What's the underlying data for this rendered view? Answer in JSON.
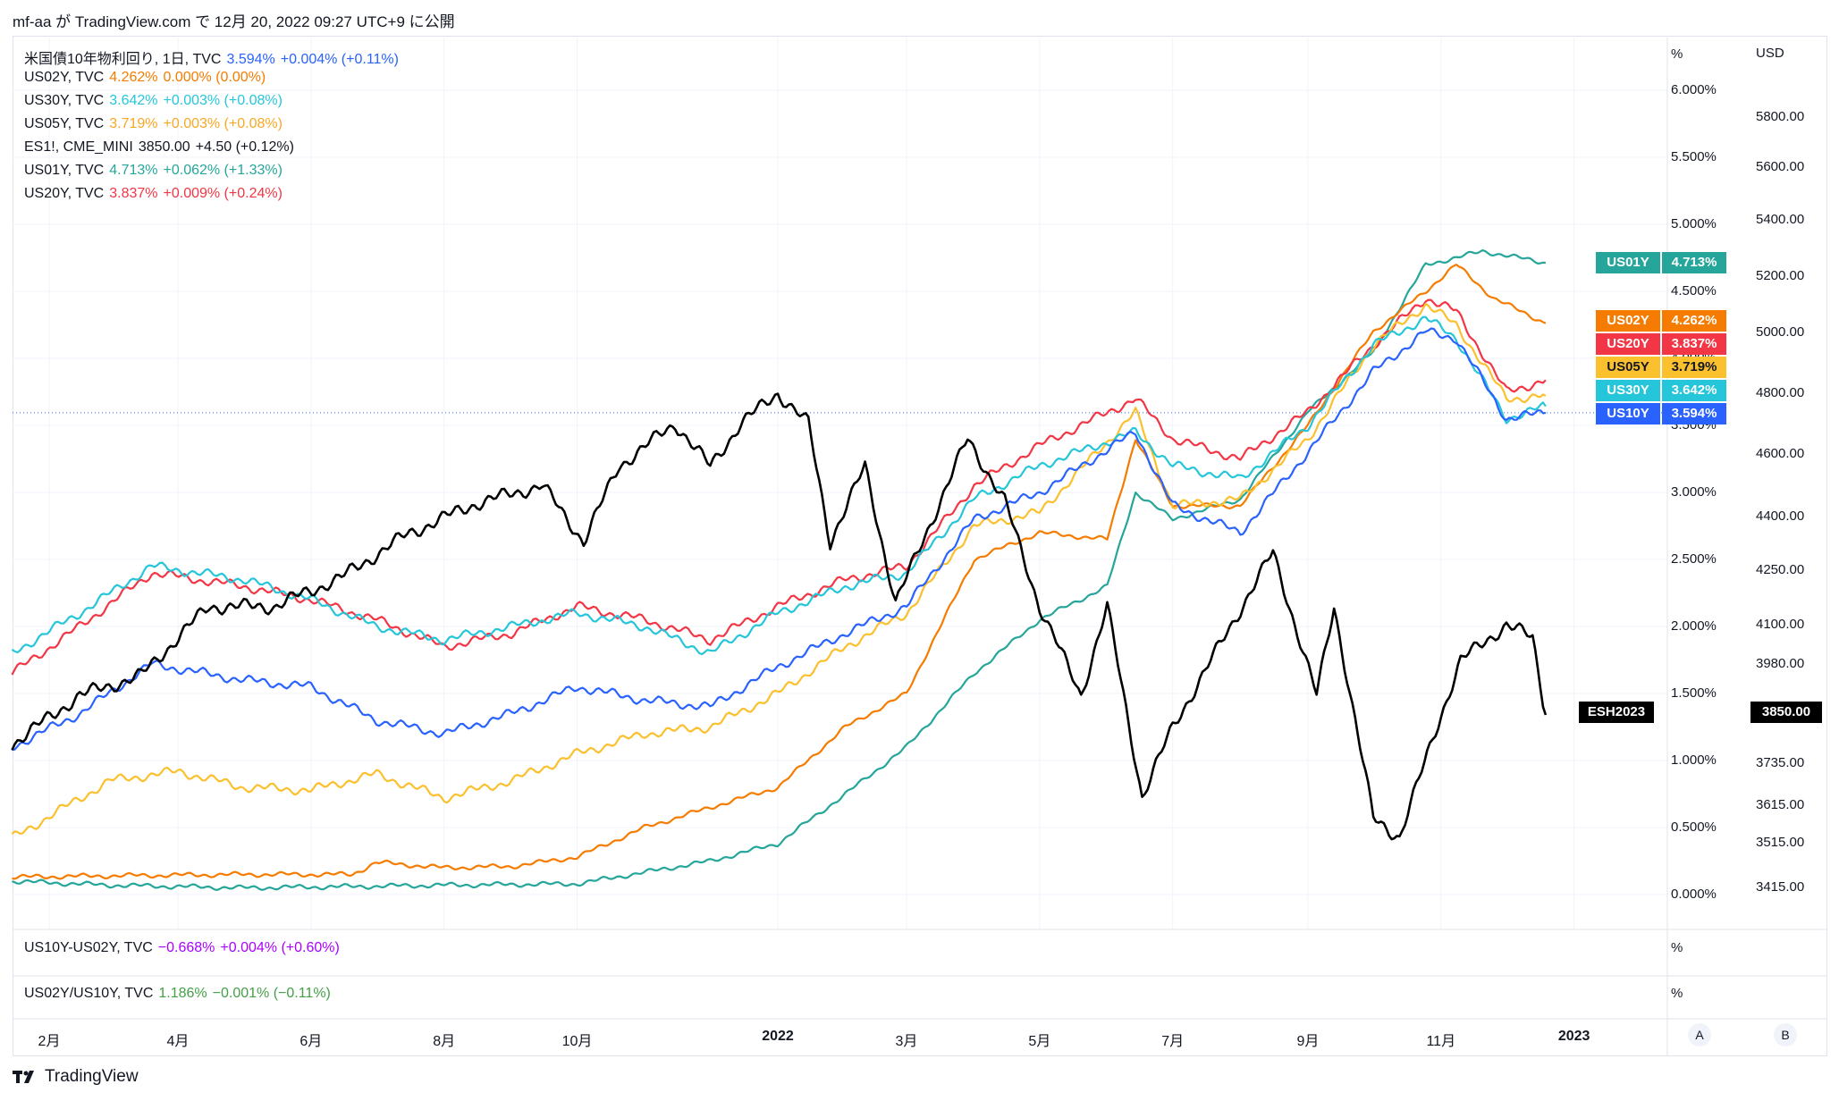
{
  "header": {
    "text": "mf-aa が TradingView.com で 12月 20, 2022 09:27 UTC+9 に公開"
  },
  "legend": [
    {
      "name": "米国債10年物利回り, 1日, TVC",
      "value": "3.594%",
      "change": "+0.004% (+0.11%)",
      "color": "#2962ff"
    },
    {
      "name": "US02Y, TVC",
      "value": "4.262%",
      "change": "0.000% (0.00%)",
      "color": "#f57c00"
    },
    {
      "name": "US30Y, TVC",
      "value": "3.642%",
      "change": "+0.003% (+0.08%)",
      "color": "#26c6da"
    },
    {
      "name": "US05Y, TVC",
      "value": "3.719%",
      "change": "+0.003% (+0.08%)",
      "color": "#fbc02d"
    },
    {
      "name": "ES1!, CME_MINI",
      "value": "3850.00",
      "change": "+4.50 (+0.12%)",
      "color": "#131722"
    },
    {
      "name": "US01Y, TVC",
      "value": "4.713%",
      "change": "+0.062% (+1.33%)",
      "color": "#26a69a"
    },
    {
      "name": "US20Y, TVC",
      "value": "3.837%",
      "change": "+0.009% (+0.24%)",
      "color": "#f23645"
    }
  ],
  "pane2": {
    "name": "US10Y-US02Y, TVC",
    "value": "−0.668%",
    "change": "+0.004% (+0.60%)",
    "color": "#aa00ff",
    "unit": "%"
  },
  "pane3": {
    "name": "US02Y/US10Y, TVC",
    "value": "1.186%",
    "change": "−0.001% (−0.11%)",
    "color": "#43a047",
    "unit": "%"
  },
  "axis_units": {
    "left": "%",
    "right": "USD"
  },
  "badges": {
    "US01Y": {
      "label": "US01Y",
      "value": "4.713%",
      "color": "#26a69a"
    },
    "US02Y": {
      "label": "US02Y",
      "value": "4.262%",
      "color": "#f57c00"
    },
    "US20Y": {
      "label": "US20Y",
      "value": "3.837%",
      "color": "#f23645"
    },
    "US05Y": {
      "label": "US05Y",
      "value": "3.719%",
      "color": "#fbc02d"
    },
    "US30Y": {
      "label": "US30Y",
      "value": "3.642%",
      "color": "#26c6da"
    },
    "US10Y": {
      "label": "US10Y",
      "value": "3.594%",
      "color": "#2962ff"
    },
    "ESH2023": {
      "label": "ESH2023",
      "value": "3850.00",
      "color": "#000000"
    }
  },
  "buttons": {
    "a": "A",
    "b": "B"
  },
  "footer": {
    "brand": "TradingView"
  },
  "chart_data": {
    "type": "line",
    "x_labels": [
      "2月",
      "4月",
      "6月",
      "8月",
      "10月",
      "2022",
      "3月",
      "5月",
      "7月",
      "9月",
      "11月",
      "2023"
    ],
    "y_left": {
      "unit": "%",
      "ticks": [
        "0.000%",
        "0.500%",
        "1.000%",
        "1.500%",
        "2.000%",
        "2.500%",
        "3.000%",
        "3.500%",
        "4.000%",
        "4.500%",
        "5.000%",
        "5.500%",
        "6.000%"
      ],
      "range": [
        0,
        6
      ]
    },
    "y_right": {
      "unit": "USD",
      "ticks": [
        "3415.00",
        "3515.00",
        "3615.00",
        "3735.00",
        "3850.00",
        "3980.00",
        "4100.00",
        "4250.00",
        "4400.00",
        "4600.00",
        "4800.00",
        "5000.00",
        "5200.00",
        "5400.00",
        "5600.00",
        "5800.00"
      ],
      "scale": "log"
    },
    "series": [
      {
        "name": "US01Y",
        "color": "#26a69a",
        "axis": "left",
        "points": [
          [
            "2021-01-15",
            0.1
          ],
          [
            "2021-03-01",
            0.07
          ],
          [
            "2021-05-01",
            0.05
          ],
          [
            "2021-06-20",
            0.06
          ],
          [
            "2021-08-01",
            0.07
          ],
          [
            "2021-10-01",
            0.08
          ],
          [
            "2021-12-01",
            0.25
          ],
          [
            "2022-01-01",
            0.38
          ],
          [
            "2022-02-01",
            0.75
          ],
          [
            "2022-03-01",
            1.1
          ],
          [
            "2022-04-01",
            1.65
          ],
          [
            "2022-05-01",
            2.05
          ],
          [
            "2022-06-01",
            2.3
          ],
          [
            "2022-06-14",
            3.0
          ],
          [
            "2022-07-01",
            2.8
          ],
          [
            "2022-08-01",
            2.95
          ],
          [
            "2022-09-01",
            3.6
          ],
          [
            "2022-10-01",
            4.05
          ],
          [
            "2022-10-25",
            4.7
          ],
          [
            "2022-11-08",
            4.75
          ],
          [
            "2022-11-20",
            4.8
          ],
          [
            "2022-12-19",
            4.713
          ]
        ]
      },
      {
        "name": "US02Y",
        "color": "#f57c00",
        "axis": "left",
        "points": [
          [
            "2021-01-15",
            0.13
          ],
          [
            "2021-03-01",
            0.14
          ],
          [
            "2021-05-01",
            0.15
          ],
          [
            "2021-06-20",
            0.15
          ],
          [
            "2021-07-01",
            0.24
          ],
          [
            "2021-08-01",
            0.2
          ],
          [
            "2021-09-01",
            0.21
          ],
          [
            "2021-10-01",
            0.28
          ],
          [
            "2021-11-01",
            0.5
          ],
          [
            "2021-12-01",
            0.65
          ],
          [
            "2022-01-01",
            0.8
          ],
          [
            "2022-02-01",
            1.25
          ],
          [
            "2022-03-01",
            1.5
          ],
          [
            "2022-04-01",
            2.5
          ],
          [
            "2022-05-01",
            2.7
          ],
          [
            "2022-06-01",
            2.65
          ],
          [
            "2022-06-14",
            3.4
          ],
          [
            "2022-07-01",
            2.9
          ],
          [
            "2022-08-01",
            2.9
          ],
          [
            "2022-09-01",
            3.5
          ],
          [
            "2022-10-01",
            4.2
          ],
          [
            "2022-10-25",
            4.5
          ],
          [
            "2022-11-08",
            4.7
          ],
          [
            "2022-11-25",
            4.45
          ],
          [
            "2022-12-19",
            4.262
          ]
        ]
      },
      {
        "name": "US20Y",
        "color": "#f23645",
        "axis": "left",
        "points": [
          [
            "2021-01-15",
            1.65
          ],
          [
            "2021-02-15",
            2.0
          ],
          [
            "2021-03-20",
            2.4
          ],
          [
            "2021-05-01",
            2.3
          ],
          [
            "2021-06-01",
            2.2
          ],
          [
            "2021-07-01",
            2.05
          ],
          [
            "2021-08-01",
            1.85
          ],
          [
            "2021-09-01",
            1.95
          ],
          [
            "2021-10-01",
            2.15
          ],
          [
            "2021-11-01",
            2.05
          ],
          [
            "2021-12-01",
            1.9
          ],
          [
            "2022-01-01",
            2.15
          ],
          [
            "2022-02-01",
            2.35
          ],
          [
            "2022-03-01",
            2.45
          ],
          [
            "2022-04-01",
            3.05
          ],
          [
            "2022-05-01",
            3.35
          ],
          [
            "2022-06-14",
            3.7
          ],
          [
            "2022-07-01",
            3.4
          ],
          [
            "2022-08-01",
            3.25
          ],
          [
            "2022-09-01",
            3.6
          ],
          [
            "2022-10-01",
            4.1
          ],
          [
            "2022-10-25",
            4.45
          ],
          [
            "2022-11-08",
            4.35
          ],
          [
            "2022-12-01",
            3.75
          ],
          [
            "2022-12-19",
            3.837
          ]
        ]
      },
      {
        "name": "US05Y",
        "color": "#fbc02d",
        "axis": "left",
        "points": [
          [
            "2021-01-15",
            0.42
          ],
          [
            "2021-03-01",
            0.85
          ],
          [
            "2021-04-01",
            0.92
          ],
          [
            "2021-05-01",
            0.8
          ],
          [
            "2021-06-01",
            0.78
          ],
          [
            "2021-07-01",
            0.9
          ],
          [
            "2021-08-01",
            0.72
          ],
          [
            "2021-09-01",
            0.85
          ],
          [
            "2021-10-01",
            1.05
          ],
          [
            "2021-11-01",
            1.2
          ],
          [
            "2021-12-01",
            1.25
          ],
          [
            "2022-01-01",
            1.5
          ],
          [
            "2022-02-01",
            1.85
          ],
          [
            "2022-03-01",
            2.1
          ],
          [
            "2022-04-01",
            2.75
          ],
          [
            "2022-05-01",
            2.85
          ],
          [
            "2022-06-14",
            3.6
          ],
          [
            "2022-07-01",
            2.9
          ],
          [
            "2022-08-01",
            2.95
          ],
          [
            "2022-09-01",
            3.4
          ],
          [
            "2022-10-01",
            4.1
          ],
          [
            "2022-10-25",
            4.4
          ],
          [
            "2022-11-08",
            4.25
          ],
          [
            "2022-12-01",
            3.7
          ],
          [
            "2022-12-19",
            3.719
          ]
        ]
      },
      {
        "name": "US30Y",
        "color": "#26c6da",
        "axis": "left",
        "points": [
          [
            "2021-01-15",
            1.8
          ],
          [
            "2021-02-15",
            2.1
          ],
          [
            "2021-03-20",
            2.45
          ],
          [
            "2021-05-01",
            2.35
          ],
          [
            "2021-06-01",
            2.2
          ],
          [
            "2021-07-01",
            2.0
          ],
          [
            "2021-08-01",
            1.9
          ],
          [
            "2021-09-01",
            2.0
          ],
          [
            "2021-10-01",
            2.1
          ],
          [
            "2021-11-01",
            2.0
          ],
          [
            "2021-12-01",
            1.8
          ],
          [
            "2022-01-01",
            2.1
          ],
          [
            "2022-02-01",
            2.3
          ],
          [
            "2022-03-01",
            2.4
          ],
          [
            "2022-04-01",
            2.95
          ],
          [
            "2022-05-01",
            3.2
          ],
          [
            "2022-06-14",
            3.45
          ],
          [
            "2022-07-01",
            3.2
          ],
          [
            "2022-08-01",
            3.1
          ],
          [
            "2022-09-01",
            3.5
          ],
          [
            "2022-10-01",
            4.1
          ],
          [
            "2022-10-25",
            4.3
          ],
          [
            "2022-11-08",
            4.15
          ],
          [
            "2022-12-01",
            3.55
          ],
          [
            "2022-12-19",
            3.642
          ]
        ]
      },
      {
        "name": "US10Y",
        "color": "#2962ff",
        "axis": "left",
        "points": [
          [
            "2021-01-15",
            1.1
          ],
          [
            "2021-02-15",
            1.35
          ],
          [
            "2021-03-20",
            1.72
          ],
          [
            "2021-05-01",
            1.6
          ],
          [
            "2021-06-01",
            1.55
          ],
          [
            "2021-07-01",
            1.3
          ],
          [
            "2021-08-01",
            1.2
          ],
          [
            "2021-09-01",
            1.35
          ],
          [
            "2021-10-01",
            1.55
          ],
          [
            "2021-11-01",
            1.45
          ],
          [
            "2021-12-01",
            1.4
          ],
          [
            "2022-01-01",
            1.7
          ],
          [
            "2022-02-01",
            1.95
          ],
          [
            "2022-03-01",
            2.15
          ],
          [
            "2022-04-01",
            2.8
          ],
          [
            "2022-05-01",
            3.0
          ],
          [
            "2022-06-14",
            3.45
          ],
          [
            "2022-07-01",
            2.9
          ],
          [
            "2022-08-01",
            2.7
          ],
          [
            "2022-09-01",
            3.3
          ],
          [
            "2022-10-01",
            3.9
          ],
          [
            "2022-10-25",
            4.2
          ],
          [
            "2022-11-08",
            4.15
          ],
          [
            "2022-12-01",
            3.55
          ],
          [
            "2022-12-19",
            3.594
          ]
        ]
      },
      {
        "name": "ESH2023",
        "color": "#000000",
        "axis": "right",
        "points": [
          [
            "2021-01-15",
            3780
          ],
          [
            "2021-02-15",
            3900
          ],
          [
            "2021-03-15",
            3950
          ],
          [
            "2021-04-15",
            4150
          ],
          [
            "2021-05-15",
            4150
          ],
          [
            "2021-06-15",
            4230
          ],
          [
            "2021-07-15",
            4350
          ],
          [
            "2021-08-15",
            4440
          ],
          [
            "2021-09-15",
            4500
          ],
          [
            "2021-10-04",
            4330
          ],
          [
            "2021-10-20",
            4560
          ],
          [
            "2021-11-15",
            4700
          ],
          [
            "2021-12-01",
            4560
          ],
          [
            "2021-12-15",
            4700
          ],
          [
            "2022-01-01",
            4800
          ],
          [
            "2022-01-15",
            4700
          ],
          [
            "2022-01-25",
            4330
          ],
          [
            "2022-02-10",
            4560
          ],
          [
            "2022-02-24",
            4160
          ],
          [
            "2022-03-29",
            4650
          ],
          [
            "2022-04-15",
            4450
          ],
          [
            "2022-05-01",
            4150
          ],
          [
            "2022-05-20",
            3900
          ],
          [
            "2022-06-01",
            4150
          ],
          [
            "2022-06-17",
            3640
          ],
          [
            "2022-07-01",
            3820
          ],
          [
            "2022-08-16",
            4300
          ],
          [
            "2022-09-05",
            3900
          ],
          [
            "2022-09-13",
            4150
          ],
          [
            "2022-10-01",
            3580
          ],
          [
            "2022-10-13",
            3530
          ],
          [
            "2022-11-01",
            3850
          ],
          [
            "2022-11-10",
            3990
          ],
          [
            "2022-12-01",
            4100
          ],
          [
            "2022-12-13",
            4060
          ],
          [
            "2022-12-19",
            3850
          ]
        ]
      }
    ]
  }
}
